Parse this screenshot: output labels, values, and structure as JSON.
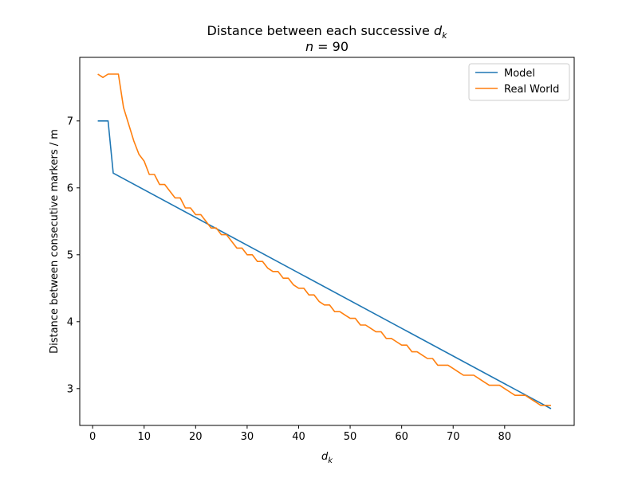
{
  "chart_data": {
    "type": "line",
    "title": "Distance between each successive",
    "title_var": "d",
    "title_var_sub": "k",
    "subtitle_var": "n",
    "subtitle_rest": " = 90",
    "xlabel_var": "d",
    "xlabel_sub": "k",
    "ylabel": "Distance between consecutive markers / m",
    "xlim": [
      -2.5,
      93.5
    ],
    "ylim": [
      2.45,
      7.95
    ],
    "xticks": [
      0,
      10,
      20,
      30,
      40,
      50,
      60,
      70,
      80
    ],
    "yticks": [
      3,
      4,
      5,
      6,
      7
    ],
    "grid": false,
    "legend_position": "top-right",
    "series": [
      {
        "name": "Model",
        "color": "#1f77b4",
        "x": [
          1,
          2,
          3,
          4,
          89
        ],
        "y": [
          7.0,
          7.0,
          7.0,
          6.22,
          2.7
        ]
      },
      {
        "name": "Real World",
        "color": "#ff7f0e",
        "x": [
          1,
          2,
          3,
          4,
          5,
          6,
          7,
          8,
          9,
          10,
          11,
          12,
          13,
          14,
          15,
          16,
          17,
          18,
          19,
          20,
          21,
          22,
          23,
          24,
          25,
          26,
          27,
          28,
          29,
          30,
          31,
          32,
          33,
          34,
          35,
          36,
          37,
          38,
          39,
          40,
          41,
          42,
          43,
          44,
          45,
          46,
          47,
          48,
          49,
          50,
          51,
          52,
          53,
          54,
          55,
          56,
          57,
          58,
          59,
          60,
          61,
          62,
          63,
          64,
          65,
          66,
          67,
          68,
          69,
          70,
          71,
          72,
          73,
          74,
          75,
          76,
          77,
          78,
          79,
          80,
          81,
          82,
          83,
          84,
          85,
          86,
          87,
          88,
          89
        ],
        "y": [
          7.7,
          7.65,
          7.7,
          7.7,
          7.7,
          7.2,
          6.95,
          6.7,
          6.5,
          6.4,
          6.2,
          6.2,
          6.05,
          6.05,
          5.95,
          5.85,
          5.85,
          5.7,
          5.7,
          5.6,
          5.6,
          5.5,
          5.4,
          5.4,
          5.3,
          5.3,
          5.2,
          5.1,
          5.1,
          5.0,
          5.0,
          4.9,
          4.9,
          4.8,
          4.75,
          4.75,
          4.65,
          4.65,
          4.55,
          4.5,
          4.5,
          4.4,
          4.4,
          4.3,
          4.25,
          4.25,
          4.15,
          4.15,
          4.1,
          4.05,
          4.05,
          3.95,
          3.95,
          3.9,
          3.85,
          3.85,
          3.75,
          3.75,
          3.7,
          3.65,
          3.65,
          3.55,
          3.55,
          3.5,
          3.45,
          3.45,
          3.35,
          3.35,
          3.35,
          3.3,
          3.25,
          3.2,
          3.2,
          3.2,
          3.15,
          3.1,
          3.05,
          3.05,
          3.05,
          3.0,
          2.95,
          2.9,
          2.9,
          2.9,
          2.85,
          2.8,
          2.75,
          2.75,
          2.75
        ]
      }
    ]
  }
}
